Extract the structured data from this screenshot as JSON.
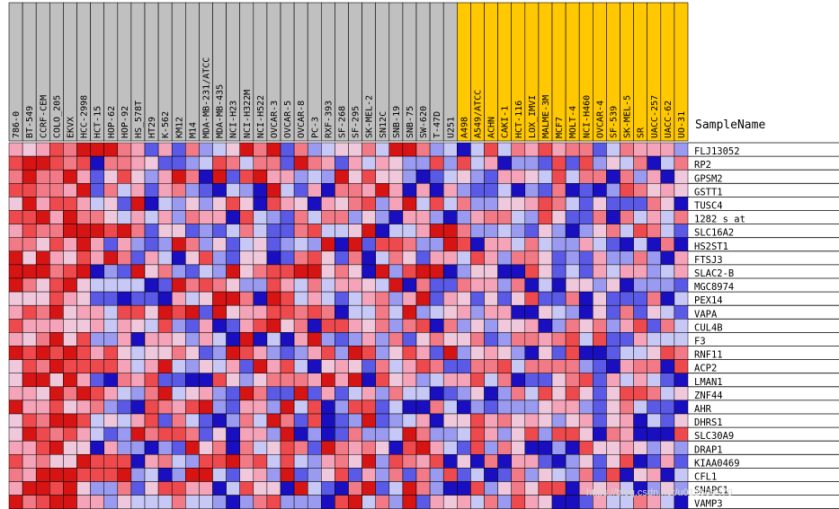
{
  "chart_data": {
    "type": "heatmap",
    "title": "",
    "sample_name_label": "SampleName",
    "columns_left_group": [
      "786-0",
      "BT-549",
      "CCRF-CEM",
      "COLO_205",
      "EKVX",
      "HCC-2998",
      "HCT-15",
      "HOP-62",
      "HOP-92",
      "HS_578T",
      "HT29",
      "K-562",
      "KM12",
      "M14",
      "MDA-MB-231/ATCC",
      "MDA-MB-435",
      "NCI-H23",
      "NCI-H322M",
      "NCI-H522",
      "OVCAR-3",
      "OVCAR-5",
      "OVCAR-8",
      "PC-3",
      "RXF-393",
      "SF-268",
      "SF-295",
      "SK-MEL-2",
      "SN12C",
      "SNB-19",
      "SNB-75",
      "SW-620",
      "T-47D",
      "U251"
    ],
    "columns_right_group": [
      "A498",
      "A549/ATCC",
      "ACHN",
      "CAKI-1",
      "HCT-116",
      "LOX_IMVI",
      "MALME-3M",
      "MCF7",
      "MOLT-4",
      "NCI-H460",
      "OVCAR-4",
      "SF-539",
      "SK-MEL-5",
      "SR",
      "UACC-257",
      "UACC-62",
      "UO-31"
    ],
    "rows": [
      "FLJ13052",
      "RP2",
      "GPSM2",
      "GSTT1",
      "TUSC4",
      "1282_s_at",
      "SLC16A2",
      "HS2ST1",
      "FTSJ3",
      "SLAC2-B",
      "MGC8974",
      "PEX14",
      "VAPA",
      "CUL4B",
      "F3",
      "RNF11",
      "ACP2",
      "LMAN1",
      "ZNF44",
      "AHR",
      "DHRS1",
      "SLC30A9",
      "DRAP1",
      "KIAA0469",
      "CFL1",
      "SNAPC1",
      "VAMP3"
    ],
    "color_scale": [
      "#1a0fc0",
      "#5a5ae6",
      "#9a9af0",
      "#c8c8f6",
      "#f0c8dc",
      "#f4a3b8",
      "#f27a86",
      "#ee4a4e",
      "#d61414"
    ],
    "header_colors": {
      "left_group": "#c0c0c0",
      "right_group": "#ffc800"
    }
  },
  "watermark": "https://blog.csdn.net/u012598470"
}
